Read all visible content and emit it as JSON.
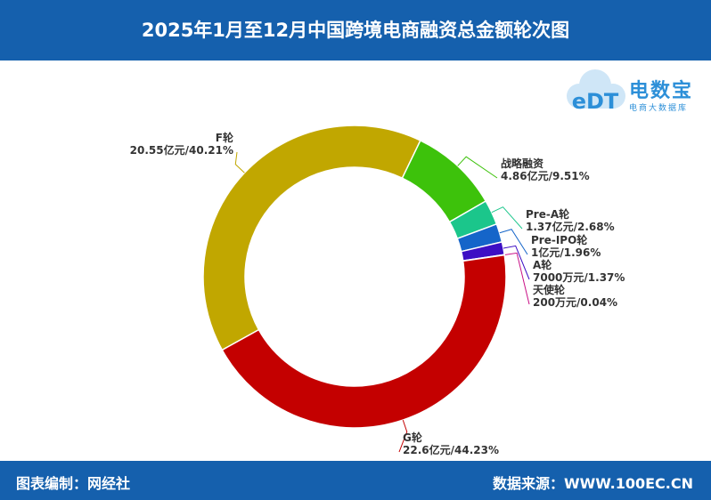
{
  "header": {
    "title": "2025年1月至12月中国跨境电商融资总金额轮次图"
  },
  "footer": {
    "left": "图表编制：网经社",
    "right": "数据来源：WWW.100EC.CN"
  },
  "logo": {
    "mark": "eDT",
    "name": "电数宝",
    "sub": "电商大数据库"
  },
  "chart_data": {
    "type": "pie",
    "title": "2025年1月至12月中国跨境电商融资总金额轮次图",
    "legend": "none",
    "slices": [
      {
        "name": "F轮",
        "value_label": "20.55亿元/40.21%",
        "percent": 40.21,
        "color": "#c1a700"
      },
      {
        "name": "战略融资",
        "value_label": "4.86亿元/9.51%",
        "percent": 9.51,
        "color": "#3dc20b"
      },
      {
        "name": "Pre-A轮",
        "value_label": "1.37亿元/2.68%",
        "percent": 2.68,
        "color": "#1bc68b"
      },
      {
        "name": "Pre-IPO轮",
        "value_label": "1亿元/1.96%",
        "percent": 1.96,
        "color": "#1565c9"
      },
      {
        "name": "A轮",
        "value_label": "7000万元/1.37%",
        "percent": 1.37,
        "color": "#3d0fc4"
      },
      {
        "name": "天使轮",
        "value_label": "200万元/0.04%",
        "percent": 0.04,
        "color": "#c90f86"
      },
      {
        "name": "G轮",
        "value_label": "22.6亿元/44.23%",
        "percent": 44.23,
        "color": "#c40000"
      }
    ]
  }
}
